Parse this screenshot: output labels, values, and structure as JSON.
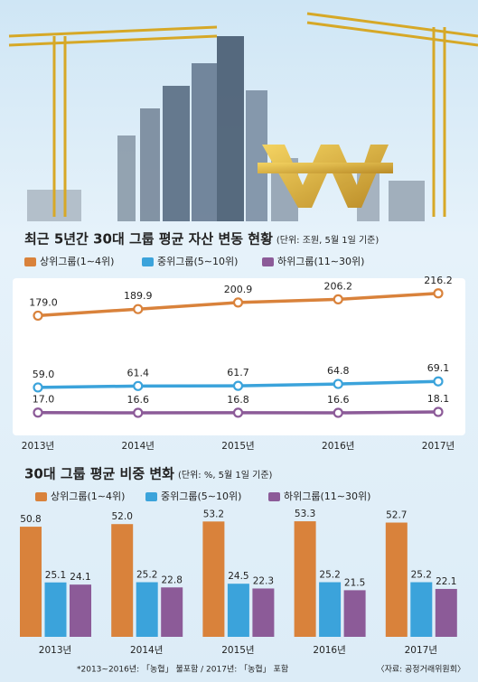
{
  "chart_data": [
    {
      "type": "line",
      "title": "최근 5년간 30대 그룹 평균 자산 변동 현황",
      "subtitle": "(단위: 조원, 5월 1일 기준)",
      "categories": [
        "2013년",
        "2014년",
        "2015년",
        "2016년",
        "2017년"
      ],
      "series": [
        {
          "name": "상위그룹(1∼4위)",
          "color": "#d9823b",
          "values": [
            179.0,
            189.9,
            200.9,
            206.2,
            216.2
          ],
          "value_labels": [
            "179.0",
            "189.9",
            "200.9",
            "206.2",
            "216.2"
          ]
        },
        {
          "name": "중위그룹(5∼10위)",
          "color": "#3ba3db",
          "values": [
            59.0,
            61.4,
            61.7,
            64.8,
            69.1
          ],
          "value_labels": [
            "59.0",
            "61.4",
            "61.7",
            "64.8",
            "69.1"
          ]
        },
        {
          "name": "하위그룹(11∼30위)",
          "color": "#8c5b98",
          "values": [
            17.0,
            16.6,
            16.8,
            16.6,
            18.1
          ],
          "value_labels": [
            "17.0",
            "16.6",
            "16.8",
            "16.6",
            "18.1"
          ]
        }
      ],
      "ylim": [
        0,
        240
      ]
    },
    {
      "type": "bar",
      "title": "30대 그룹 평균 비중 변화",
      "subtitle": "(단위: %, 5월 1일 기준)",
      "categories": [
        "2013년",
        "2014년",
        "2015년",
        "2016년",
        "2017년"
      ],
      "series": [
        {
          "name": "상위그룹(1∼4위)",
          "color": "#d9823b",
          "values": [
            50.8,
            52.0,
            53.2,
            53.3,
            52.7
          ],
          "value_labels": [
            "50.8",
            "52.0",
            "53.2",
            "53.3",
            "52.7"
          ]
        },
        {
          "name": "중위그룹(5∼10위)",
          "color": "#3ba3db",
          "values": [
            25.1,
            25.2,
            24.5,
            25.2,
            25.2
          ],
          "value_labels": [
            "25.1",
            "25.2",
            "24.5",
            "25.2",
            "25.2"
          ]
        },
        {
          "name": "하위그룹(11∼30위)",
          "color": "#8c5b98",
          "values": [
            24.1,
            22.8,
            22.3,
            21.5,
            22.1
          ],
          "value_labels": [
            "24.1",
            "22.8",
            "22.3",
            "21.5",
            "22.1"
          ]
        }
      ],
      "ylim": [
        0,
        55
      ],
      "note": "*2013∼2016년: 「농협」 불포함 / 2017년: 「농협」 포함",
      "source": "〈자료: 공정거래위원회〉"
    }
  ]
}
